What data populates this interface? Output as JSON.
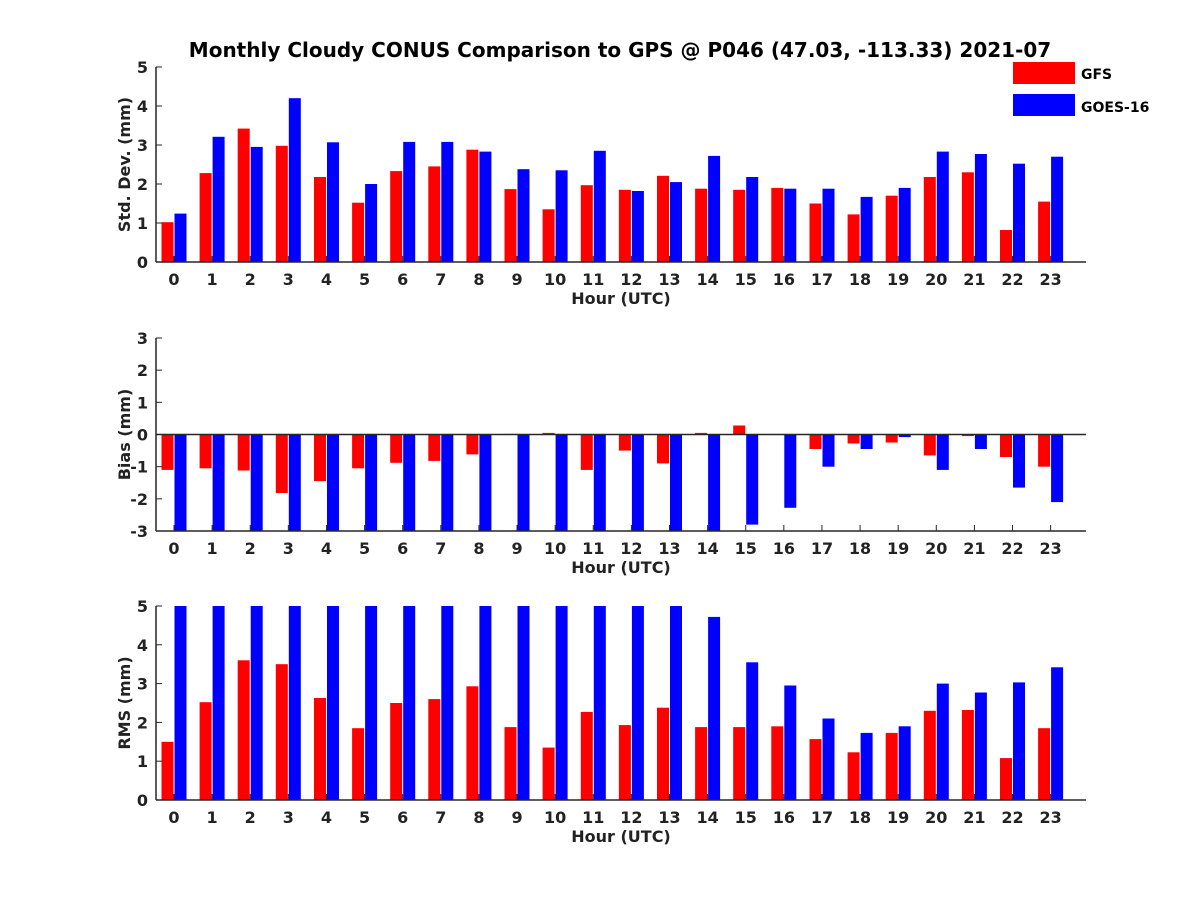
{
  "chart_data": {
    "type": "bar",
    "title": "Monthly Cloudy CONUS Comparison to GPS @ P046 (47.03, -113.33) 2021-07",
    "categories": [
      "0",
      "1",
      "2",
      "3",
      "4",
      "5",
      "6",
      "7",
      "8",
      "9",
      "10",
      "11",
      "12",
      "13",
      "14",
      "15",
      "16",
      "17",
      "18",
      "19",
      "20",
      "21",
      "22",
      "23"
    ],
    "legend": {
      "placement": "top-right",
      "entries": [
        {
          "name": "GFS",
          "color": "#ff0000"
        },
        {
          "name": "GOES-16",
          "color": "#0000ff"
        }
      ]
    },
    "panels": [
      {
        "id": "std",
        "xlabel": "Hour (UTC)",
        "ylabel": "Std. Dev. (mm)",
        "ylim": [
          0,
          5
        ],
        "yticks": [
          "0",
          "1",
          "2",
          "3",
          "4",
          "5"
        ],
        "series": [
          {
            "name": "GFS",
            "values": [
              1.02,
              2.28,
              3.42,
              2.98,
              2.18,
              1.52,
              2.33,
              2.45,
              2.88,
              1.87,
              1.35,
              1.97,
              1.85,
              2.21,
              1.88,
              1.85,
              1.9,
              1.5,
              1.22,
              1.7,
              2.18,
              2.3,
              0.82,
              1.55
            ]
          },
          {
            "name": "GOES-16",
            "values": [
              1.24,
              3.21,
              2.95,
              4.2,
              3.07,
              2.0,
              3.08,
              3.08,
              2.83,
              2.38,
              2.35,
              2.85,
              1.82,
              2.05,
              2.72,
              2.18,
              1.88,
              1.88,
              1.67,
              1.9,
              2.83,
              2.77,
              2.52,
              2.7
            ]
          }
        ]
      },
      {
        "id": "bias",
        "xlabel": "Hour (UTC)",
        "ylabel": "Bias (mm)",
        "ylim": [
          -3,
          3
        ],
        "yticks": [
          "-3",
          "-2",
          "-1",
          "0",
          "1",
          "2",
          "3"
        ],
        "zero_line": true,
        "series": [
          {
            "name": "GFS",
            "values": [
              -1.1,
              -1.05,
              -1.12,
              -1.82,
              -1.45,
              -1.05,
              -0.88,
              -0.82,
              -0.62,
              0.02,
              0.05,
              -1.1,
              -0.5,
              -0.9,
              0.05,
              0.28,
              0.0,
              -0.45,
              -0.28,
              -0.25,
              -0.65,
              -0.05,
              -0.7,
              -1.0
            ]
          },
          {
            "name": "GOES-16",
            "values": [
              -3.0,
              -3.0,
              -3.0,
              -3.0,
              -3.0,
              -3.0,
              -3.0,
              -3.0,
              -3.0,
              -3.0,
              -3.0,
              -3.0,
              -3.0,
              -3.0,
              -3.0,
              -2.8,
              -2.28,
              -1.0,
              -0.45,
              -0.08,
              -1.1,
              -0.45,
              -1.65,
              -2.1
            ]
          }
        ]
      },
      {
        "id": "rms",
        "xlabel": "Hour (UTC)",
        "ylabel": "RMS (mm)",
        "ylim": [
          0,
          5
        ],
        "yticks": [
          "0",
          "1",
          "2",
          "3",
          "4",
          "5"
        ],
        "series": [
          {
            "name": "GFS",
            "values": [
              1.5,
              2.52,
              3.6,
              3.5,
              2.63,
              1.85,
              2.5,
              2.6,
              2.93,
              1.88,
              1.35,
              2.27,
              1.93,
              2.38,
              1.88,
              1.88,
              1.9,
              1.57,
              1.23,
              1.73,
              2.3,
              2.32,
              1.08,
              1.85
            ]
          },
          {
            "name": "GOES-16",
            "values": [
              5.0,
              5.0,
              5.0,
              5.0,
              5.0,
              5.0,
              5.0,
              5.0,
              5.0,
              5.0,
              5.0,
              5.0,
              5.0,
              5.0,
              4.72,
              3.55,
              2.95,
              2.1,
              1.73,
              1.9,
              3.0,
              2.77,
              3.03,
              3.42
            ]
          }
        ]
      }
    ]
  }
}
